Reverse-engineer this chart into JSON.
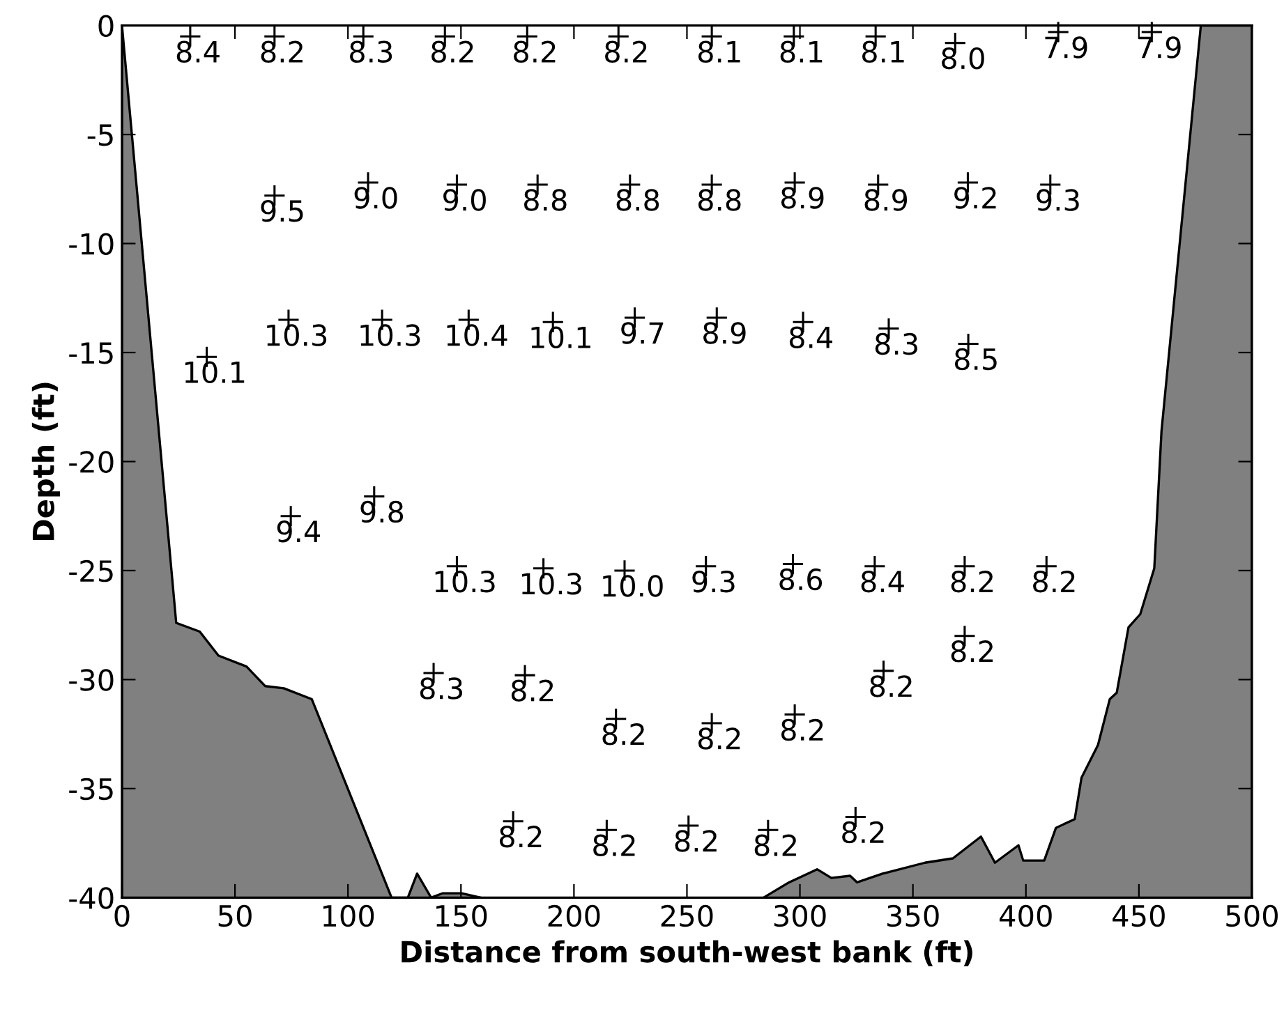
{
  "chart_data": {
    "type": "scatter",
    "xlabel": "Distance from south-west bank (ft)",
    "ylabel": "Depth (ft)",
    "xlim": [
      0,
      500
    ],
    "ylim": [
      -40,
      0
    ],
    "xticks": [
      0,
      50,
      100,
      150,
      200,
      250,
      300,
      350,
      400,
      450,
      500
    ],
    "yticks": [
      -40,
      -35,
      -30,
      -25,
      -20,
      -15,
      -10,
      -5,
      0
    ],
    "grid": false,
    "series": [
      {
        "type": "area",
        "color": "#808080",
        "x": [
          0,
          0,
          24.0,
          34.4,
          42.7,
          55.1,
          63.4,
          71.6,
          84.0,
          119.3,
          126.5,
          130.6,
          136.8,
          142.0,
          150.3,
          158.6
        ],
        "values": [
          -40,
          0,
          -27.4,
          -27.8,
          -28.9,
          -29.4,
          -30.3,
          -30.4,
          -30.9,
          -40,
          -40,
          -38.9,
          -40,
          -39.8,
          -39.8,
          -40
        ]
      },
      {
        "type": "area",
        "color": "#808080",
        "x": [
          283.9,
          295.2,
          307.6,
          313.9,
          322.2,
          325.3,
          336.6,
          355.3,
          367.7,
          380.1,
          386.3,
          396.7,
          398.8,
          408.1,
          413.3,
          421.6,
          424.6,
          431.9,
          437.1,
          440.2,
          445.4,
          450.6,
          456.8,
          460.0,
          477.4,
          500,
          500
        ],
        "values": [
          -40,
          -39.3,
          -38.7,
          -39.1,
          -39.0,
          -39.3,
          -38.9,
          -38.4,
          -38.2,
          -37.2,
          -38.4,
          -37.6,
          -38.3,
          -38.3,
          -36.8,
          -36.4,
          -34.5,
          -33.0,
          -30.9,
          -30.6,
          -27.6,
          -27.0,
          -24.9,
          -18.6,
          0,
          0,
          -40
        ]
      },
      {
        "marker": "cross",
        "color": "#000000",
        "x": [
          30.2,
          67.5,
          106.8,
          142.9,
          179.3,
          219.7,
          261,
          297.3,
          333.5,
          368.7,
          414.3,
          455.7,
          67.5,
          108.9,
          148.2,
          183.9,
          224.8,
          261,
          297.7,
          334.6,
          374.3,
          410.8,
          37.5,
          73.7,
          115.1,
          153.4,
          190.7,
          226.9,
          263.2,
          301.4,
          339.3,
          374.5,
          74.7,
          111.6,
          148.2,
          186.5,
          222.4,
          258.4,
          296.9,
          333.1,
          372.9,
          409.1,
          137.9,
          178.3,
          218.6,
          261,
          297.7,
          337,
          372.9,
          173.1,
          214.5,
          250.7,
          285.9,
          324.6
        ],
        "values": [
          -0.5,
          -0.5,
          -0.5,
          -0.5,
          -0.5,
          -0.5,
          -0.5,
          -0.5,
          -0.5,
          -0.8,
          -0.3,
          -0.3,
          -7.8,
          -7.2,
          -7.3,
          -7.3,
          -7.3,
          -7.3,
          -7.2,
          -7.3,
          -7.2,
          -7.3,
          -15.2,
          -13.5,
          -13.5,
          -13.5,
          -13.6,
          -13.4,
          -13.4,
          -13.6,
          -13.9,
          -14.6,
          -22.5,
          -21.6,
          -24.8,
          -24.9,
          -25.0,
          -24.8,
          -24.7,
          -24.8,
          -24.8,
          -24.8,
          -29.7,
          -29.8,
          -31.8,
          -32.0,
          -31.6,
          -29.6,
          -28.0,
          -36.5,
          -36.9,
          -36.7,
          -36.9,
          -36.3
        ]
      }
    ],
    "annotations": [
      {
        "text": "8.4",
        "x": 30.2,
        "y": -0.5
      },
      {
        "text": "8.2",
        "x": 67.5,
        "y": -0.5
      },
      {
        "text": "8.3",
        "x": 106.8,
        "y": -0.5
      },
      {
        "text": "8.2",
        "x": 142.9,
        "y": -0.5
      },
      {
        "text": "8.2",
        "x": 179.3,
        "y": -0.5
      },
      {
        "text": "8.2",
        "x": 219.7,
        "y": -0.5
      },
      {
        "text": "8.1",
        "x": 261,
        "y": -0.5
      },
      {
        "text": "8.1",
        "x": 297.3,
        "y": -0.5
      },
      {
        "text": "8.1",
        "x": 333.5,
        "y": -0.5
      },
      {
        "text": "8.0",
        "x": 368.7,
        "y": -0.8
      },
      {
        "text": "7.9",
        "x": 414.3,
        "y": -0.3
      },
      {
        "text": "7.9",
        "x": 455.7,
        "y": -0.3
      },
      {
        "text": "9.5",
        "x": 67.5,
        "y": -7.8
      },
      {
        "text": "9.0",
        "x": 108.9,
        "y": -7.2
      },
      {
        "text": "9.0",
        "x": 148.2,
        "y": -7.3
      },
      {
        "text": "8.8",
        "x": 183.9,
        "y": -7.3
      },
      {
        "text": "8.8",
        "x": 224.8,
        "y": -7.3
      },
      {
        "text": "8.8",
        "x": 261,
        "y": -7.3
      },
      {
        "text": "8.9",
        "x": 297.7,
        "y": -7.2
      },
      {
        "text": "8.9",
        "x": 334.6,
        "y": -7.3
      },
      {
        "text": "9.2",
        "x": 374.3,
        "y": -7.2
      },
      {
        "text": "9.3",
        "x": 410.8,
        "y": -7.3
      },
      {
        "text": "10.1",
        "x": 37.5,
        "y": -15.2
      },
      {
        "text": "10.3",
        "x": 73.7,
        "y": -13.5
      },
      {
        "text": "10.3",
        "x": 115.1,
        "y": -13.5
      },
      {
        "text": "10.4",
        "x": 153.4,
        "y": -13.5
      },
      {
        "text": "10.1",
        "x": 190.7,
        "y": -13.6
      },
      {
        "text": "9.7",
        "x": 226.9,
        "y": -13.4
      },
      {
        "text": "8.9",
        "x": 263.2,
        "y": -13.4
      },
      {
        "text": "8.4",
        "x": 301.4,
        "y": -13.6
      },
      {
        "text": "8.3",
        "x": 339.3,
        "y": -13.9
      },
      {
        "text": "8.5",
        "x": 374.5,
        "y": -14.6
      },
      {
        "text": "9.4",
        "x": 74.7,
        "y": -22.5
      },
      {
        "text": "9.8",
        "x": 111.6,
        "y": -21.6
      },
      {
        "text": "10.3",
        "x": 148.2,
        "y": -24.8
      },
      {
        "text": "10.3",
        "x": 186.5,
        "y": -24.9
      },
      {
        "text": "10.0",
        "x": 222.4,
        "y": -25.0
      },
      {
        "text": "9.3",
        "x": 258.4,
        "y": -24.8
      },
      {
        "text": "8.6",
        "x": 296.9,
        "y": -24.7
      },
      {
        "text": "8.4",
        "x": 333.1,
        "y": -24.8
      },
      {
        "text": "8.2",
        "x": 372.9,
        "y": -24.8
      },
      {
        "text": "8.2",
        "x": 409.1,
        "y": -24.8
      },
      {
        "text": "8.3",
        "x": 137.9,
        "y": -29.7
      },
      {
        "text": "8.2",
        "x": 178.3,
        "y": -29.8
      },
      {
        "text": "8.2",
        "x": 218.6,
        "y": -31.8
      },
      {
        "text": "8.2",
        "x": 261,
        "y": -32.0
      },
      {
        "text": "8.2",
        "x": 297.7,
        "y": -31.6
      },
      {
        "text": "8.2",
        "x": 337,
        "y": -29.6
      },
      {
        "text": "8.2",
        "x": 372.9,
        "y": -28.0
      },
      {
        "text": "8.2",
        "x": 173.1,
        "y": -36.5
      },
      {
        "text": "8.2",
        "x": 214.5,
        "y": -36.9
      },
      {
        "text": "8.2",
        "x": 250.7,
        "y": -36.7
      },
      {
        "text": "8.2",
        "x": 285.9,
        "y": -36.9
      },
      {
        "text": "8.2",
        "x": 324.6,
        "y": -36.3
      }
    ]
  }
}
